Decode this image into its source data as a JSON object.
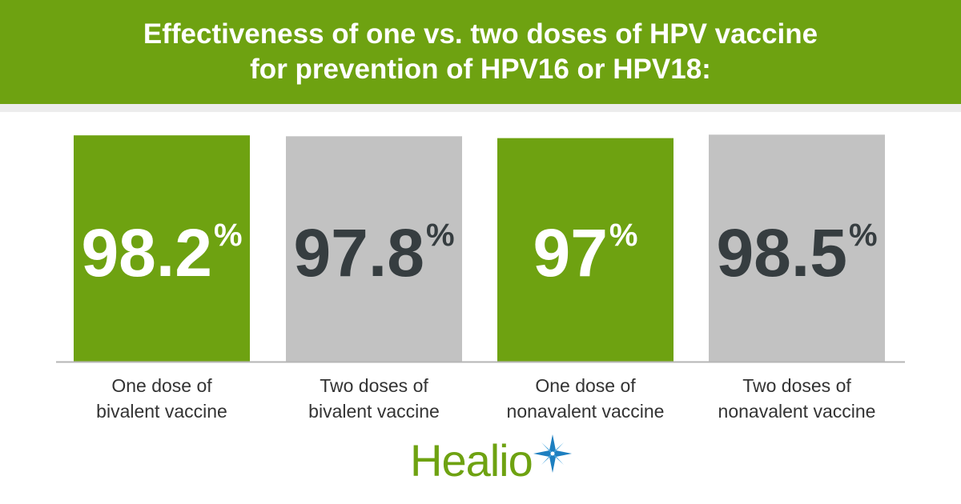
{
  "header": {
    "title_line1": "Effectiveness of one vs. two doses of HPV vaccine",
    "title_line2": "for prevention of HPV16 or HPV18:"
  },
  "colors": {
    "brand_green": "#6ea211",
    "bar_gray": "#c2c2c2",
    "value_dark": "#363d40",
    "value_light": "#ffffff",
    "baseline": "#b5b5b5",
    "logo_blue": "#1d7fc0"
  },
  "chart_data": {
    "type": "bar",
    "title": "Effectiveness of one vs. two doses of HPV vaccine for prevention of HPV16 or HPV18:",
    "categories": [
      "One dose of bivalent vaccine",
      "Two doses of bivalent vaccine",
      "One dose of nonavalent vaccine",
      "Two doses of nonavalent vaccine"
    ],
    "category_lines": [
      [
        "One dose of",
        "bivalent vaccine"
      ],
      [
        "Two doses of",
        "bivalent vaccine"
      ],
      [
        "One dose of",
        "nonavalent vaccine"
      ],
      [
        "Two doses of",
        "nonavalent vaccine"
      ]
    ],
    "values": [
      98.2,
      97.8,
      97,
      98.5
    ],
    "value_labels": [
      "98.2",
      "97.8",
      "97",
      "98.5"
    ],
    "value_unit": "%",
    "bar_colors": [
      "#6ea211",
      "#c2c2c2",
      "#6ea211",
      "#c2c2c2"
    ],
    "value_colors": [
      "#ffffff",
      "#363d40",
      "#ffffff",
      "#363d40"
    ],
    "ylim": [
      0,
      100
    ],
    "grid": false,
    "legend": "none"
  },
  "footer": {
    "logo_text": "Healio",
    "logo_icon": "compass-star-icon"
  }
}
